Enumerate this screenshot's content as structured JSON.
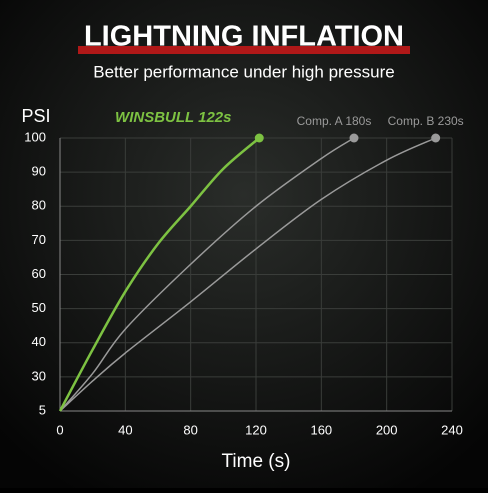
{
  "chart_data": {
    "type": "line",
    "title": "LIGHTNING INFLATION",
    "subtitle": "Better performance under high pressure",
    "y_label": "PSI",
    "x_label": "Time (s)",
    "xlim": [
      0,
      240
    ],
    "xticks": [
      0,
      40,
      80,
      120,
      160,
      200,
      240
    ],
    "ylim": [
      5,
      100
    ],
    "yticks": [
      5,
      30,
      40,
      50,
      60,
      70,
      80,
      90,
      100
    ],
    "grid": true,
    "series": [
      {
        "name": "WINSBULL 122s",
        "color": "#7dc242",
        "x": [
          0,
          20,
          40,
          60,
          80,
          100,
          122
        ],
        "values": [
          5,
          38,
          55,
          69,
          80,
          91,
          100
        ]
      },
      {
        "name": "Comp. A 180s",
        "color": "#9a9a9a",
        "x": [
          0,
          20,
          40,
          80,
          120,
          160,
          180
        ],
        "values": [
          5,
          31,
          44,
          63,
          80,
          94,
          100
        ]
      },
      {
        "name": "Comp. B 230s",
        "color": "#9a9a9a",
        "x": [
          0,
          20,
          40,
          80,
          120,
          160,
          200,
          230
        ],
        "values": [
          5,
          27,
          37,
          52,
          67.5,
          82,
          93.5,
          100
        ]
      }
    ]
  }
}
